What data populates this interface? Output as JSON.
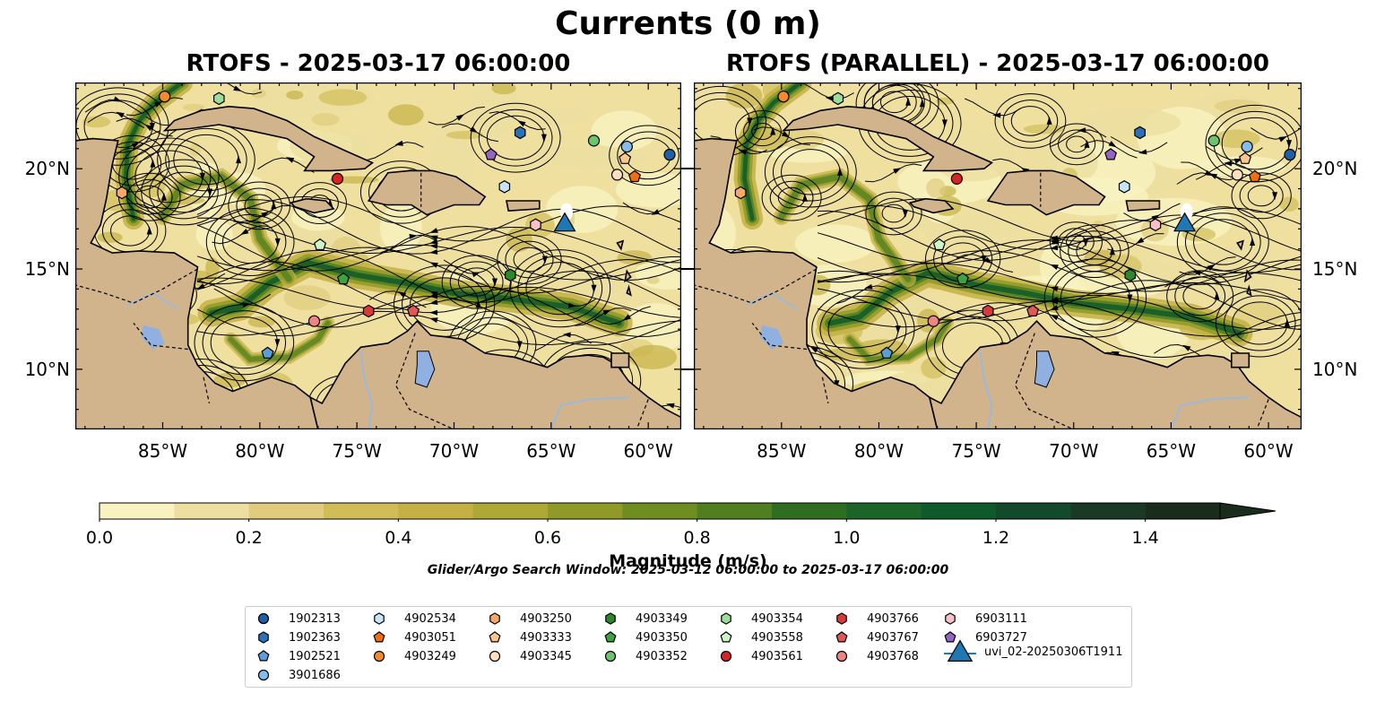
{
  "title": "Currents (0 m)",
  "panels": [
    {
      "title": "RTOFS - 2025-03-17 06:00:00"
    },
    {
      "title": "RTOFS (PARALLEL) - 2025-03-17 06:00:00"
    }
  ],
  "map": {
    "lon_range": [
      -89.5,
      -58.3
    ],
    "lat_range": [
      7.0,
      24.3
    ],
    "x_ticks": [
      "85°W",
      "80°W",
      "75°W",
      "70°W",
      "65°W",
      "60°W"
    ],
    "x_tick_values": [
      -85,
      -80,
      -75,
      -70,
      -65,
      -60
    ],
    "y_ticks": [
      "20°N",
      "15°N",
      "10°N"
    ],
    "y_tick_values": [
      20,
      15,
      10
    ],
    "colors": {
      "land": "#d2b48c",
      "lake": "#8fb0e0",
      "river": "#9db8d8"
    }
  },
  "colorbar": {
    "label": "Magnitude (m/s)",
    "ticks": [
      "0.0",
      "0.2",
      "0.4",
      "0.6",
      "0.8",
      "1.0",
      "1.2",
      "1.4"
    ],
    "tick_values": [
      0,
      0.2,
      0.4,
      0.6,
      0.8,
      1.0,
      1.2,
      1.4
    ],
    "min": 0.0,
    "max": 1.5,
    "extend": "max",
    "colors": [
      "#f7f2c0",
      "#ecdfa0",
      "#e0cc7c",
      "#d0bd58",
      "#c4b044",
      "#aea836",
      "#8f9a28",
      "#6f8e22",
      "#4f7f1e",
      "#2f6e22",
      "#1d6428",
      "#0e5a2a",
      "#144a2c",
      "#1a3a26",
      "#1a2c1c"
    ]
  },
  "search_window": "Glider/Argo Search Window: 2025-03-12 06:00:00 to 2025-03-17 06:00:00",
  "legend": {
    "items": [
      {
        "label": "1902313",
        "marker": "circle",
        "color": "#1f5fa8"
      },
      {
        "label": "1902363",
        "marker": "hexagon",
        "color": "#2c70b8"
      },
      {
        "label": "1902521",
        "marker": "pentagon",
        "color": "#5a9fd8"
      },
      {
        "label": "3901686",
        "marker": "circle",
        "color": "#86bde8"
      },
      {
        "label": "4902534",
        "marker": "hexagon",
        "color": "#c8e4f8"
      },
      {
        "label": "4903051",
        "marker": "pentagon",
        "color": "#f06d14"
      },
      {
        "label": "4903249",
        "marker": "circle",
        "color": "#f5892e"
      },
      {
        "label": "4903250",
        "marker": "hexagon",
        "color": "#f7a766"
      },
      {
        "label": "4903333",
        "marker": "pentagon",
        "color": "#fbc68e"
      },
      {
        "label": "4903345",
        "marker": "circle",
        "color": "#fde0bf"
      },
      {
        "label": "4903349",
        "marker": "hexagon",
        "color": "#2a8a2a"
      },
      {
        "label": "4903350",
        "marker": "pentagon",
        "color": "#3ea23e"
      },
      {
        "label": "4903352",
        "marker": "circle",
        "color": "#6cc46c"
      },
      {
        "label": "4903354",
        "marker": "hexagon",
        "color": "#9ade9a"
      },
      {
        "label": "4903558",
        "marker": "pentagon",
        "color": "#cef5c8"
      },
      {
        "label": "4903561",
        "marker": "circle",
        "color": "#d42424"
      },
      {
        "label": "4903766",
        "marker": "hexagon",
        "color": "#d83a3a"
      },
      {
        "label": "4903767",
        "marker": "pentagon",
        "color": "#e25858"
      },
      {
        "label": "4903768",
        "marker": "circle",
        "color": "#ef8484"
      },
      {
        "label": "6903111",
        "marker": "hexagon",
        "color": "#f8c0c8"
      },
      {
        "label": "6903727",
        "marker": "pentagon",
        "color": "#9464c4"
      },
      {
        "label": "uvi_02-20250306T1911",
        "marker": "triangle",
        "color": "#1f77b4"
      }
    ]
  },
  "observations": [
    {
      "id": "1902313",
      "lon": -58.9,
      "lat": 20.7
    },
    {
      "id": "1902363",
      "lon": -66.6,
      "lat": 21.8
    },
    {
      "id": "1902521",
      "lon": -79.6,
      "lat": 10.8
    },
    {
      "id": "3901686",
      "lon": -61.1,
      "lat": 21.1
    },
    {
      "id": "4902534",
      "lon": -67.4,
      "lat": 19.1
    },
    {
      "id": "4903051",
      "lon": -60.7,
      "lat": 19.6
    },
    {
      "id": "4903249",
      "lon": -84.9,
      "lat": 23.6
    },
    {
      "id": "4903250",
      "lon": -87.1,
      "lat": 18.8
    },
    {
      "id": "4903333",
      "lon": -61.2,
      "lat": 20.5
    },
    {
      "id": "4903345",
      "lon": -61.6,
      "lat": 19.7
    },
    {
      "id": "4903349",
      "lon": -67.1,
      "lat": 14.7
    },
    {
      "id": "4903350",
      "lon": -75.7,
      "lat": 14.5
    },
    {
      "id": "4903352",
      "lon": -62.8,
      "lat": 21.4
    },
    {
      "id": "4903354",
      "lon": -82.1,
      "lat": 23.5
    },
    {
      "id": "4903558",
      "lon": -76.9,
      "lat": 16.2
    },
    {
      "id": "4903561",
      "lon": -76.0,
      "lat": 19.5
    },
    {
      "id": "4903766",
      "lon": -74.4,
      "lat": 12.9
    },
    {
      "id": "4903767",
      "lon": -72.1,
      "lat": 12.9
    },
    {
      "id": "4903768",
      "lon": -77.2,
      "lat": 12.4
    },
    {
      "id": "6903111",
      "lon": -65.8,
      "lat": 17.2
    },
    {
      "id": "6903727",
      "lon": -68.1,
      "lat": 20.7
    },
    {
      "id": "uvi_02-20250306T1911",
      "lon": -64.3,
      "lat": 17.3
    }
  ]
}
